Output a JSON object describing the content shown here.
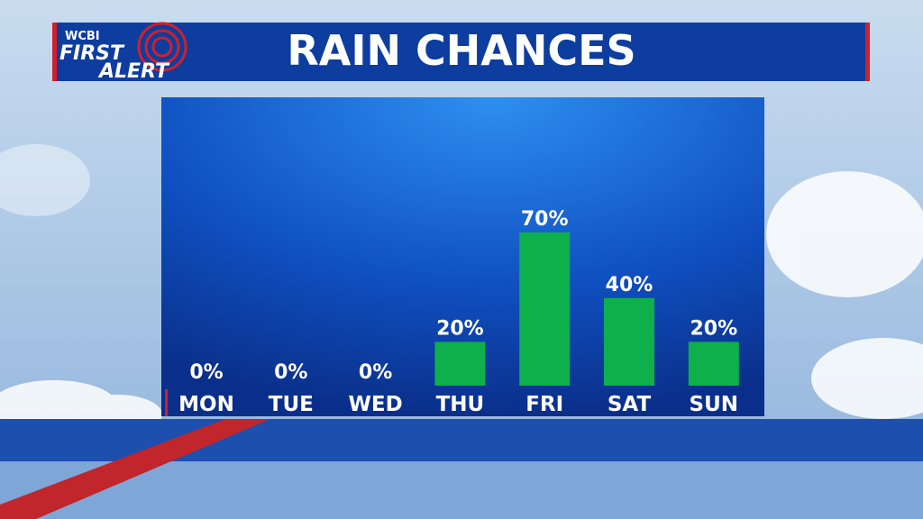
{
  "logo": {
    "station": "WCBI",
    "line1": "FIRST",
    "line2": "ALERT"
  },
  "chart_data": {
    "type": "bar",
    "title": "RAIN CHANCES",
    "categories": [
      "MON",
      "TUE",
      "WED",
      "THU",
      "FRI",
      "SAT",
      "SUN"
    ],
    "values": [
      0,
      0,
      0,
      20,
      70,
      40,
      20
    ],
    "value_labels": [
      "0%",
      "0%",
      "0%",
      "20%",
      "70%",
      "40%",
      "20%"
    ],
    "color": "#0db04b"
  }
}
